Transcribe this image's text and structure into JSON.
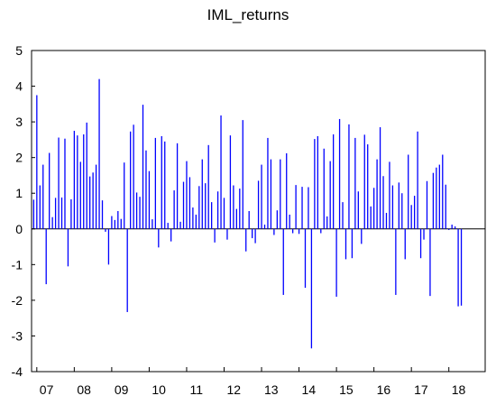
{
  "chart_data": {
    "type": "bar",
    "title": "IML_returns",
    "xlabel": "",
    "ylabel": "",
    "ylim": [
      -4,
      5
    ],
    "yticks": [
      -4,
      -3,
      -2,
      -1,
      0,
      1,
      2,
      3,
      4,
      5
    ],
    "x_tick_labels": [
      "07",
      "08",
      "09",
      "10",
      "11",
      "12",
      "13",
      "14",
      "15",
      "16",
      "17",
      "18"
    ],
    "x_range": [
      2006.86,
      2018.97
    ],
    "grid": false,
    "legend": "none",
    "series": [
      {
        "color": "#0000ff",
        "x_start": 2006.917,
        "x_step": 0.08333,
        "values": [
          0.82,
          3.75,
          1.22,
          1.8,
          -1.55,
          2.13,
          0.33,
          0.87,
          2.56,
          0.88,
          2.53,
          -1.05,
          0.83,
          2.75,
          2.62,
          1.88,
          2.65,
          2.98,
          1.47,
          1.58,
          1.8,
          4.2,
          0.8,
          -0.08,
          -1.0,
          0.36,
          0.25,
          0.5,
          0.28,
          1.86,
          -2.33,
          2.73,
          2.92,
          1.02,
          0.9,
          3.48,
          2.2,
          1.62,
          0.27,
          2.55,
          -0.52,
          2.6,
          2.45,
          0.17,
          -0.35,
          1.08,
          2.4,
          0.2,
          1.32,
          1.9,
          1.45,
          0.6,
          0.4,
          1.2,
          1.95,
          1.28,
          2.35,
          0.75,
          -0.38,
          1.05,
          3.18,
          0.87,
          -0.3,
          2.62,
          1.22,
          0.56,
          1.13,
          3.05,
          -0.63,
          0.5,
          -0.26,
          -0.4,
          1.35,
          1.8,
          0.12,
          2.55,
          1.95,
          -0.17,
          0.52,
          1.95,
          -1.85,
          2.12,
          0.4,
          -0.12,
          1.23,
          -0.14,
          1.18,
          -1.65,
          1.17,
          -3.35,
          2.52,
          2.6,
          -0.12,
          2.25,
          0.35,
          1.9,
          2.65,
          -1.9,
          3.08,
          0.75,
          -0.85,
          2.93,
          -0.82,
          2.55,
          1.05,
          -0.42,
          2.64,
          2.37,
          0.63,
          1.15,
          1.95,
          2.85,
          1.48,
          0.45,
          1.88,
          1.22,
          -1.85,
          1.3,
          1.0,
          -0.85,
          2.08,
          0.67,
          0.93,
          2.73,
          -0.82,
          -0.3,
          1.34,
          -1.88,
          1.57,
          1.72,
          1.8,
          2.08,
          1.24,
          -0.03,
          0.12,
          0.07,
          -2.17,
          -2.15
        ]
      }
    ]
  }
}
